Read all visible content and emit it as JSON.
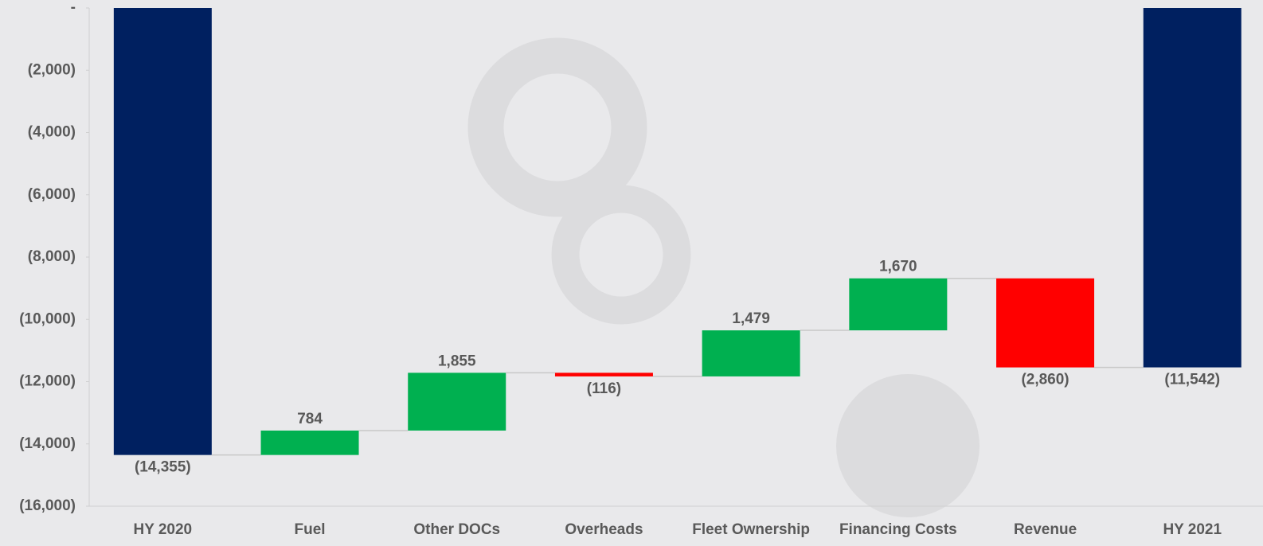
{
  "chart_data": {
    "type": "waterfall",
    "categories": [
      "HY 2020",
      "Fuel",
      "Other DOCs",
      "Overheads",
      "Fleet Ownership",
      "Financing Costs",
      "Revenue",
      "HY 2021"
    ],
    "values": [
      -14355,
      784,
      1855,
      -116,
      1479,
      1670,
      -2860,
      -11542
    ],
    "value_labels": [
      "(14,355)",
      "784",
      "1,855",
      "(116)",
      "1,479",
      "1,670",
      "(2,860)",
      "(11,542)"
    ],
    "total_color": "#002060",
    "increase_color": "#00b050",
    "decrease_color": "#ff0000",
    "ylim": [
      -16000,
      0
    ],
    "yticks": [
      {
        "value": 0,
        "label": "-"
      },
      {
        "value": -2000,
        "label": "(2,000)"
      },
      {
        "value": -4000,
        "label": "(4,000)"
      },
      {
        "value": -6000,
        "label": "(6,000)"
      },
      {
        "value": -8000,
        "label": "(8,000)"
      },
      {
        "value": -10000,
        "label": "(10,000)"
      },
      {
        "value": -12000,
        "label": "(12,000)"
      },
      {
        "value": -14000,
        "label": "(14,000)"
      },
      {
        "value": -16000,
        "label": "(16,000)"
      }
    ],
    "grid": false
  }
}
